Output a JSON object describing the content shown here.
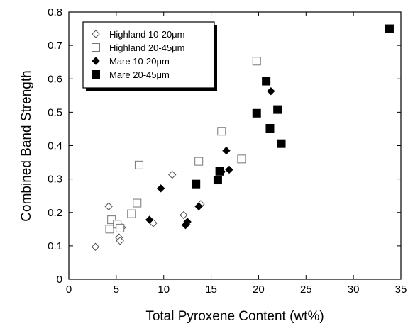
{
  "chart_data": {
    "type": "scatter",
    "xlabel": "Total Pyroxene Content (wt%)",
    "ylabel": "Combined Band Strength",
    "xlim": [
      0,
      35
    ],
    "ylim": [
      0,
      0.8
    ],
    "x_ticks": [
      "0",
      "5",
      "10",
      "15",
      "20",
      "25",
      "30",
      "35"
    ],
    "y_ticks": [
      "0",
      "0.1",
      "0.2",
      "0.3",
      "0.4",
      "0.5",
      "0.6",
      "0.7",
      "0.8"
    ],
    "grid": false,
    "legend_position": "top-left",
    "series": [
      {
        "name": "Highland 10-20μm",
        "marker": "diamond-open",
        "color": "#555555",
        "points": [
          [
            2.8,
            0.097
          ],
          [
            4.2,
            0.218
          ],
          [
            5.3,
            0.125
          ],
          [
            5.4,
            0.115
          ],
          [
            5.6,
            0.155
          ],
          [
            8.9,
            0.168
          ],
          [
            10.9,
            0.313
          ],
          [
            12.1,
            0.192
          ],
          [
            12.4,
            0.165
          ],
          [
            13.7,
            0.218
          ],
          [
            13.9,
            0.225
          ]
        ]
      },
      {
        "name": "Highland 20-45μm",
        "marker": "square-open",
        "color": "#777777",
        "points": [
          [
            4.3,
            0.15
          ],
          [
            4.5,
            0.178
          ],
          [
            5.1,
            0.165
          ],
          [
            5.4,
            0.153
          ],
          [
            6.6,
            0.196
          ],
          [
            7.2,
            0.228
          ],
          [
            7.4,
            0.342
          ],
          [
            13.7,
            0.353
          ],
          [
            16.1,
            0.443
          ],
          [
            18.2,
            0.36
          ],
          [
            19.8,
            0.653
          ]
        ]
      },
      {
        "name": "Mare 10-20μm",
        "marker": "diamond-filled",
        "color": "#000000",
        "points": [
          [
            8.5,
            0.178
          ],
          [
            9.7,
            0.272
          ],
          [
            12.3,
            0.162
          ],
          [
            12.5,
            0.172
          ],
          [
            13.7,
            0.218
          ],
          [
            16.1,
            0.322
          ],
          [
            16.6,
            0.385
          ],
          [
            16.9,
            0.328
          ],
          [
            21.3,
            0.563
          ]
        ]
      },
      {
        "name": "Mare 20-45μm",
        "marker": "square-filled",
        "color": "#000000",
        "points": [
          [
            13.4,
            0.285
          ],
          [
            15.7,
            0.297
          ],
          [
            15.9,
            0.323
          ],
          [
            19.8,
            0.497
          ],
          [
            20.8,
            0.593
          ],
          [
            21.2,
            0.452
          ],
          [
            22.0,
            0.508
          ],
          [
            22.4,
            0.406
          ],
          [
            33.8,
            0.75
          ]
        ]
      }
    ]
  }
}
